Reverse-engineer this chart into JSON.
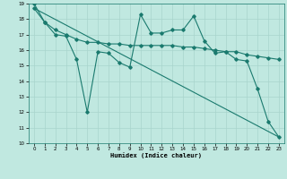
{
  "xlabel": "Humidex (Indice chaleur)",
  "bg_color": "#c0e8e0",
  "line_color": "#1a7a6e",
  "grid_color": "#a8d4cc",
  "xlim": [
    -0.5,
    23.5
  ],
  "ylim": [
    10,
    19
  ],
  "xticks": [
    0,
    1,
    2,
    3,
    4,
    5,
    6,
    7,
    8,
    9,
    10,
    11,
    12,
    13,
    14,
    15,
    16,
    17,
    18,
    19,
    20,
    21,
    22,
    23
  ],
  "yticks": [
    10,
    11,
    12,
    13,
    14,
    15,
    16,
    17,
    18,
    19
  ],
  "line1_x": [
    0,
    1,
    2,
    3,
    4,
    5,
    6,
    7,
    8,
    9,
    10,
    11,
    12,
    13,
    14,
    15,
    16,
    17,
    18,
    19,
    20,
    21,
    22,
    23
  ],
  "line1_y": [
    19.0,
    17.8,
    17.0,
    16.9,
    15.4,
    12.0,
    15.9,
    15.8,
    15.2,
    14.9,
    18.3,
    17.1,
    17.1,
    17.3,
    17.3,
    18.2,
    16.6,
    15.8,
    15.9,
    15.4,
    15.3,
    13.5,
    11.4,
    10.4
  ],
  "line2_x": [
    0,
    1,
    2,
    3,
    4,
    5,
    6,
    7,
    8,
    9,
    10,
    11,
    12,
    13,
    14,
    15,
    16,
    17,
    18,
    19,
    20,
    21,
    22,
    23
  ],
  "line2_y": [
    18.7,
    17.8,
    17.3,
    17.0,
    16.7,
    16.5,
    16.5,
    16.4,
    16.4,
    16.3,
    16.3,
    16.3,
    16.3,
    16.3,
    16.2,
    16.2,
    16.1,
    16.0,
    15.9,
    15.9,
    15.7,
    15.6,
    15.5,
    15.4
  ],
  "line3_x": [
    0,
    23
  ],
  "line3_y": [
    18.7,
    10.4
  ]
}
